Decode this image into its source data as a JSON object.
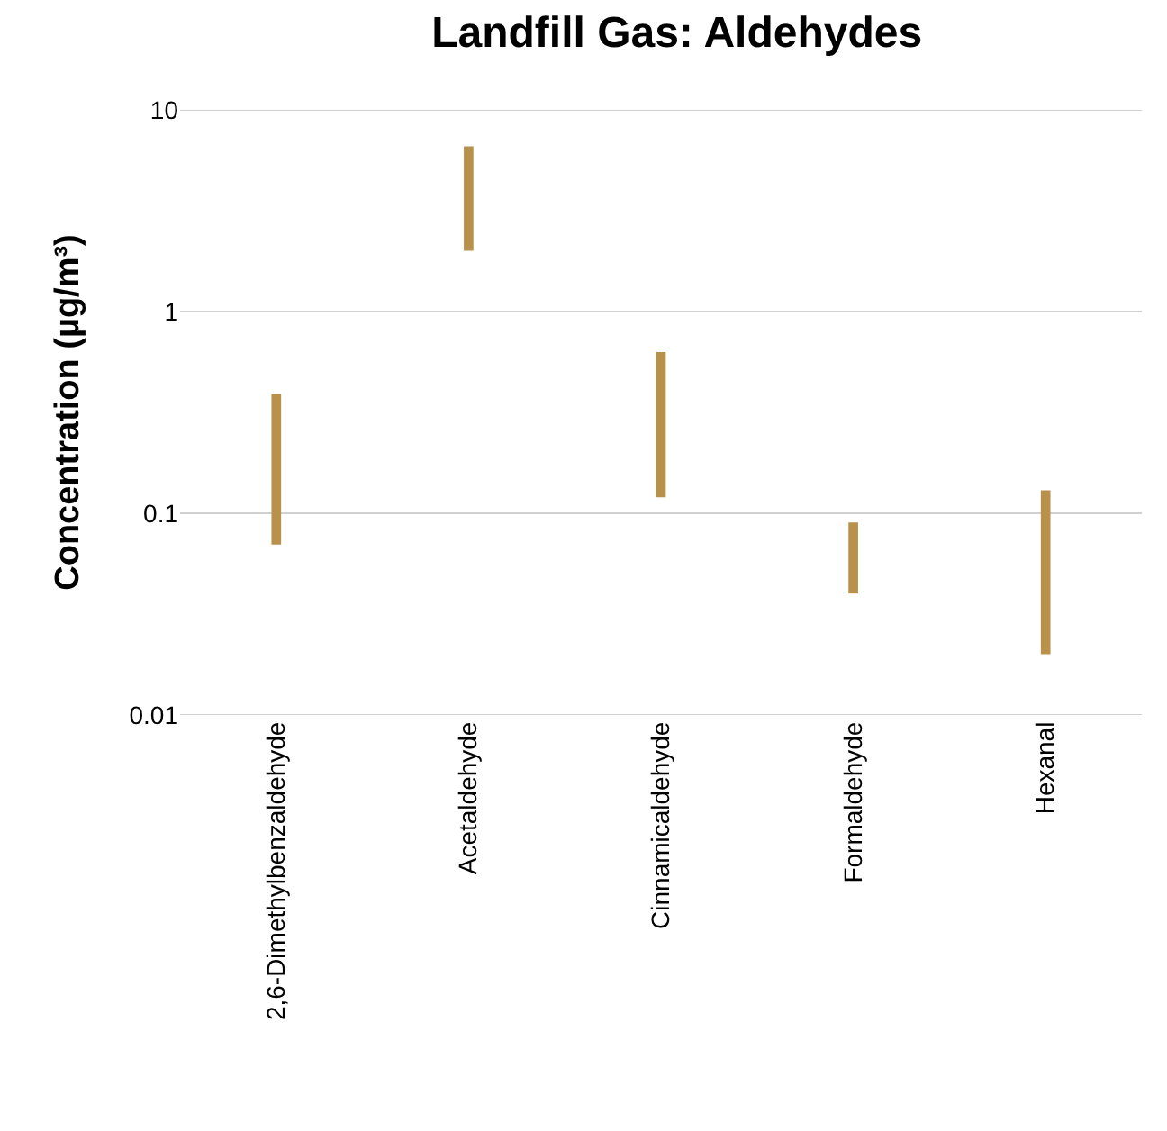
{
  "chart_data": {
    "type": "bar",
    "title": "Landfill Gas: Aldehydes",
    "ylabel": "Concentration (µg/m³)",
    "categories": [
      "2,6-Dimethylbenzaldehyde",
      "Acetaldehyde",
      "Cinnamicaldehyde",
      "Formaldehyde",
      "Hexanal"
    ],
    "base": [
      0.07,
      2,
      0.12,
      0.04,
      0.02
    ],
    "values": [
      0.32,
      4.6,
      0.51,
      0.05,
      0.11
    ],
    "color": "#b8924a",
    "log": true,
    "ylim": [
      0.01,
      10
    ],
    "yticks": [
      0.01,
      0.1,
      1,
      10
    ],
    "grid": "y"
  }
}
